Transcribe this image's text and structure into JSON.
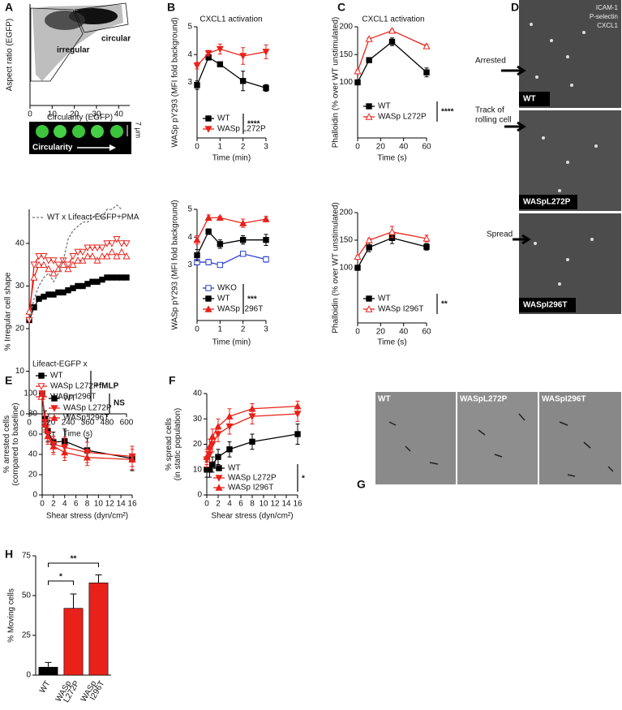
{
  "figure": {
    "panel_labels": [
      "A",
      "B",
      "C",
      "D",
      "E",
      "F",
      "G",
      "H"
    ],
    "scale_strip": {
      "label": "Circularity",
      "scale": "7 μm"
    },
    "panel_d": {
      "stains": [
        "ICAM-1",
        "P-selectin",
        "CXCL1"
      ],
      "callouts": [
        "Arrested",
        "Track of",
        "rolling cell",
        "Spread"
      ],
      "images": [
        "WT",
        "WASpL272P",
        "WASpI296T"
      ]
    },
    "panel_g": {
      "images": [
        "WT",
        "WASpL272P",
        "WASpI296T"
      ]
    }
  },
  "chart_data": [
    {
      "type": "density",
      "xlabel": "Circularity (EGFP)",
      "ylabel": "Aspect ratio (EGFP)",
      "xlim": [
        0,
        45
      ],
      "xticks": [
        0,
        10,
        20,
        30,
        40
      ],
      "annotations": [
        "circular",
        "irregular"
      ]
    },
    {
      "type": "line",
      "xlabel": "Time (s)",
      "ylabel": "% Irregular cell shape",
      "xlim": [
        0,
        600
      ],
      "xticks": [
        0,
        120,
        240,
        360,
        480,
        600
      ],
      "ylim": [
        0,
        48
      ],
      "yticks": [
        0,
        10,
        20,
        30,
        40
      ],
      "x": [
        0,
        30,
        60,
        90,
        120,
        150,
        180,
        210,
        240,
        270,
        300,
        330,
        360,
        390,
        420,
        450,
        480,
        510,
        540,
        570,
        600
      ],
      "legend_title": "Lifeact-EGFP x",
      "annotations": [
        "+fMLP"
      ],
      "series": [
        {
          "name": "WT",
          "color": "#000000",
          "marker": "square",
          "filled": true,
          "values": [
            22,
            25,
            27,
            27.5,
            28,
            28,
            28.5,
            28.5,
            29,
            29.5,
            30,
            30,
            30.5,
            31,
            31,
            31.5,
            32,
            32,
            32,
            32,
            32
          ]
        },
        {
          "name": "WASp L272P",
          "color": "#e8221b",
          "marker": "triangle-down",
          "filled": false,
          "values": [
            22,
            35,
            37,
            37,
            36,
            36,
            35,
            36,
            35,
            37,
            38,
            38,
            39,
            39,
            39,
            39,
            40,
            40,
            41,
            40,
            40
          ]
        },
        {
          "name": "WASp I296T",
          "color": "#e8221b",
          "marker": "triangle-up",
          "filled": false,
          "values": [
            24,
            32,
            35,
            35,
            34,
            33,
            34,
            35,
            34,
            35,
            36,
            36,
            37,
            37,
            36,
            37,
            37,
            38,
            37,
            38,
            37
          ]
        },
        {
          "name": "WT x Lifeact-EGFP+PMA",
          "color": "#777777",
          "marker": "none",
          "dash": true,
          "values": [
            22,
            27,
            30,
            32,
            33,
            31,
            33,
            36,
            41,
            43,
            44,
            45,
            45,
            46,
            47,
            46,
            48,
            48,
            49,
            48,
            null
          ]
        }
      ]
    },
    {
      "type": "line",
      "title": "CXCL1 activation",
      "xlabel": "Time (min)",
      "ylabel": "WASp pY293 (MFI fold background)",
      "xlim": [
        0,
        3
      ],
      "xticks": [
        0,
        1,
        2,
        3
      ],
      "ylim": [
        1,
        5
      ],
      "yticks": [
        3,
        4,
        5
      ],
      "x": [
        0,
        0.5,
        1,
        2,
        3
      ],
      "annotations": [
        "****"
      ],
      "series": [
        {
          "name": "WT",
          "color": "#000000",
          "marker": "square",
          "filled": true,
          "values": [
            2.9,
            3.9,
            3.65,
            3.05,
            2.8
          ],
          "errors": [
            0.15,
            0.1,
            0.08,
            0.35,
            0.12
          ]
        },
        {
          "name": "WASp L272P",
          "color": "#e8221b",
          "marker": "triangle-down",
          "filled": true,
          "values": [
            3.6,
            4.05,
            4.2,
            3.95,
            4.1
          ],
          "errors": [
            0.12,
            0.1,
            0.18,
            0.3,
            0.25
          ]
        }
      ]
    },
    {
      "type": "line",
      "xlabel": "Time (min)",
      "ylabel": "WASp pY293 (MFI fold background)",
      "xlim": [
        0,
        3
      ],
      "xticks": [
        0,
        1,
        2,
        3
      ],
      "ylim": [
        1,
        5
      ],
      "yticks": [
        3,
        4,
        5
      ],
      "x": [
        0,
        0.5,
        1,
        2,
        3
      ],
      "annotations": [
        "***"
      ],
      "series": [
        {
          "name": "WKO",
          "color": "#2a3fd6",
          "marker": "square",
          "filled": false,
          "values": [
            3.1,
            3.1,
            3.0,
            3.4,
            3.2
          ],
          "errors": [
            0.1,
            0.1,
            0.08,
            0.05,
            0.1
          ]
        },
        {
          "name": "WT",
          "color": "#000000",
          "marker": "square",
          "filled": true,
          "values": [
            3.35,
            4.2,
            3.75,
            3.9,
            3.9
          ],
          "errors": [
            0.2,
            0.1,
            0.15,
            0.15,
            0.2
          ]
        },
        {
          "name": "WASp I296T",
          "color": "#e8221b",
          "marker": "triangle-up",
          "filled": true,
          "values": [
            3.9,
            4.7,
            4.7,
            4.5,
            4.65
          ],
          "errors": [
            0.15,
            0.1,
            0.05,
            0.15,
            0.1
          ]
        }
      ]
    },
    {
      "type": "line",
      "title": "CXCL1 activation",
      "xlabel": "Time (s)",
      "ylabel": "Phalloidin  (% over WT unstimulated)",
      "xlim": [
        0,
        60
      ],
      "xticks": [
        0,
        20,
        40,
        60
      ],
      "ylim": [
        0,
        200
      ],
      "yticks": [
        100,
        150,
        200
      ],
      "x": [
        0,
        10,
        30,
        60
      ],
      "annotations": [
        "****"
      ],
      "series": [
        {
          "name": "WT",
          "color": "#000000",
          "marker": "square",
          "filled": true,
          "values": [
            100,
            140,
            173,
            118
          ],
          "errors": [
            2,
            3,
            7,
            8
          ]
        },
        {
          "name": "WASp L272P",
          "color": "#e8221b",
          "marker": "triangle-up",
          "filled": false,
          "values": [
            120,
            178,
            193,
            165
          ],
          "errors": [
            2,
            2,
            2,
            3
          ]
        }
      ]
    },
    {
      "type": "line",
      "xlabel": "Time (s)",
      "ylabel": "Phalloidin  (% over WT unstimulated)",
      "xlim": [
        0,
        60
      ],
      "xticks": [
        0,
        20,
        40,
        60
      ],
      "ylim": [
        0,
        200
      ],
      "yticks": [
        100,
        150,
        200
      ],
      "x": [
        0,
        10,
        30,
        60
      ],
      "annotations": [
        "**"
      ],
      "series": [
        {
          "name": "WT",
          "color": "#000000",
          "marker": "square",
          "filled": true,
          "values": [
            100,
            137,
            154,
            138
          ],
          "errors": [
            2,
            8,
            10,
            6
          ]
        },
        {
          "name": "WASp I296T",
          "color": "#e8221b",
          "marker": "triangle-up",
          "filled": false,
          "values": [
            120,
            150,
            165,
            153
          ],
          "errors": [
            2,
            3,
            10,
            6
          ]
        }
      ]
    },
    {
      "type": "line",
      "xlabel": "Shear stress (dyn/cm²)",
      "ylabel": [
        "% arrested cells",
        "(compared to baseline)"
      ],
      "xlim": [
        0,
        16
      ],
      "xticks": [
        0,
        2,
        4,
        6,
        8,
        10,
        12,
        14,
        16
      ],
      "ylim": [
        0,
        100
      ],
      "yticks": [
        0,
        20,
        40,
        60,
        80,
        100
      ],
      "x": [
        0,
        0.5,
        1,
        2,
        4,
        8,
        16
      ],
      "annotations": [
        "NS"
      ],
      "series": [
        {
          "name": "WT",
          "color": "#000000",
          "marker": "square",
          "filled": true,
          "values": [
            100,
            75,
            63,
            52,
            53,
            44,
            36
          ],
          "errors": [
            0,
            8,
            10,
            10,
            12,
            12,
            12
          ]
        },
        {
          "name": "WASp L272P",
          "color": "#e8221b",
          "marker": "triangle-down",
          "filled": true,
          "values": [
            100,
            72,
            60,
            50,
            47,
            42,
            38
          ],
          "errors": [
            0,
            8,
            8,
            8,
            10,
            10,
            10
          ]
        },
        {
          "name": "WASp I296T",
          "color": "#e8221b",
          "marker": "triangle-up",
          "filled": true,
          "values": [
            100,
            70,
            58,
            48,
            42,
            37,
            35
          ],
          "errors": [
            0,
            8,
            8,
            8,
            8,
            8,
            10
          ]
        }
      ]
    },
    {
      "type": "line",
      "xlabel": "Shear stress (dyn/cm²)",
      "ylabel": [
        "% spread cells",
        "(in static population)"
      ],
      "xlim": [
        0,
        16
      ],
      "xticks": [
        0,
        2,
        4,
        6,
        8,
        10,
        12,
        14,
        16
      ],
      "ylim": [
        0,
        40
      ],
      "yticks": [
        0,
        10,
        20,
        30,
        40
      ],
      "x": [
        0,
        0.5,
        1,
        2,
        4,
        8,
        16
      ],
      "annotations": [
        "*"
      ],
      "series": [
        {
          "name": "WT",
          "color": "#000000",
          "marker": "square",
          "filled": true,
          "values": [
            10,
            10,
            12,
            15,
            18,
            21,
            24
          ],
          "errors": [
            3,
            3,
            3,
            3,
            3,
            3,
            4
          ]
        },
        {
          "name": "WASp L272P",
          "color": "#e8221b",
          "marker": "triangle-down",
          "filled": true,
          "values": [
            14,
            16,
            20,
            24,
            27,
            31,
            32
          ],
          "errors": [
            3,
            3,
            3,
            3,
            3,
            3,
            3
          ]
        },
        {
          "name": "WASp I296T",
          "color": "#e8221b",
          "marker": "triangle-up",
          "filled": true,
          "values": [
            15,
            19,
            23,
            27,
            31,
            34,
            35
          ],
          "errors": [
            3,
            3,
            3,
            3,
            3,
            2,
            2
          ]
        }
      ]
    },
    {
      "type": "bar",
      "ylabel": "% Moving cells",
      "ylim": [
        0,
        75
      ],
      "yticks": [
        0,
        25,
        50,
        75
      ],
      "categories": [
        "WT",
        [
          "WASp",
          "L272P"
        ],
        [
          "WASp",
          "I296T"
        ]
      ],
      "values": [
        5,
        42,
        58
      ],
      "errors": [
        3,
        9,
        5
      ],
      "colors": [
        "#000000",
        "#e8221b",
        "#e8221b"
      ],
      "annotations": [
        "*",
        "**"
      ]
    }
  ]
}
